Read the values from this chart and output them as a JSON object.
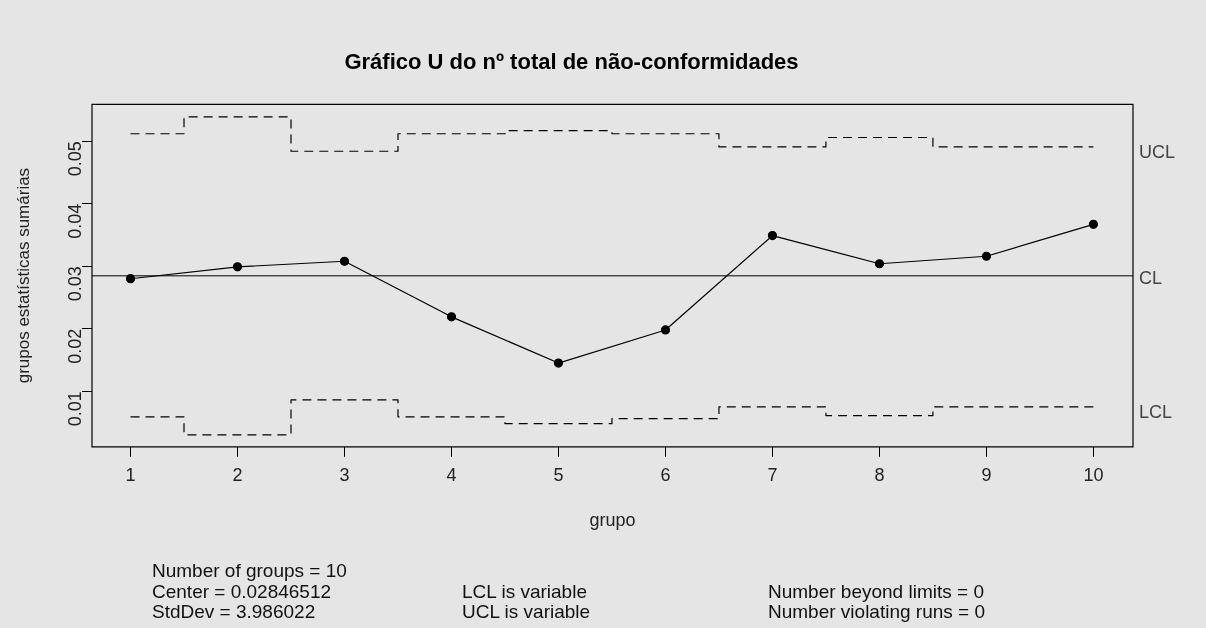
{
  "chart_data": {
    "type": "line",
    "title": "Gráfico U do nº total de não-conformidades",
    "xlabel": "grupo",
    "ylabel": "grupos estatísticas sumárias",
    "x": [
      1,
      2,
      3,
      4,
      5,
      6,
      7,
      8,
      9,
      10
    ],
    "series": [
      {
        "name": "UCL",
        "type": "step",
        "color": "#000000",
        "line_style": "dashed",
        "marker": "none",
        "values": [
          0.0512,
          0.0539,
          0.0484,
          0.0512,
          0.0517,
          0.0512,
          0.0491,
          0.0506,
          0.0491,
          0.0491
        ]
      },
      {
        "name": "LCL",
        "type": "step",
        "color": "#000000",
        "line_style": "dashed",
        "marker": "none",
        "values": [
          0.0059,
          0.003,
          0.0086,
          0.0059,
          0.0048,
          0.0056,
          0.0075,
          0.0061,
          0.0075,
          0.0075
        ]
      },
      {
        "type": "line",
        "color": "#000000",
        "line_style": "solid",
        "marker": "circle",
        "values": [
          0.028,
          0.0299,
          0.0308,
          0.0219,
          0.0145,
          0.0198,
          0.0349,
          0.0304,
          0.0316,
          0.0367
        ]
      }
    ],
    "ref_lines": [
      {
        "axis": "y",
        "value": 0.02846512,
        "label": "CL",
        "color": "#000000"
      }
    ],
    "xlim": [
      0.64,
      10.37
    ],
    "xticks": [
      1,
      2,
      3,
      4,
      5,
      6,
      7,
      8,
      9,
      10
    ],
    "ylim": [
      0.0011,
      0.0559
    ],
    "yticks": [
      0.01,
      0.02,
      0.03,
      0.04,
      0.05
    ],
    "grid": false,
    "legend": false,
    "annotations": [
      "Number of groups = 10",
      "Center = 0.02846512",
      "StdDev = 3.986022",
      "LCL is variable",
      "UCL is variable",
      "Number beyond limits = 0",
      "Number violating runs = 0"
    ]
  }
}
